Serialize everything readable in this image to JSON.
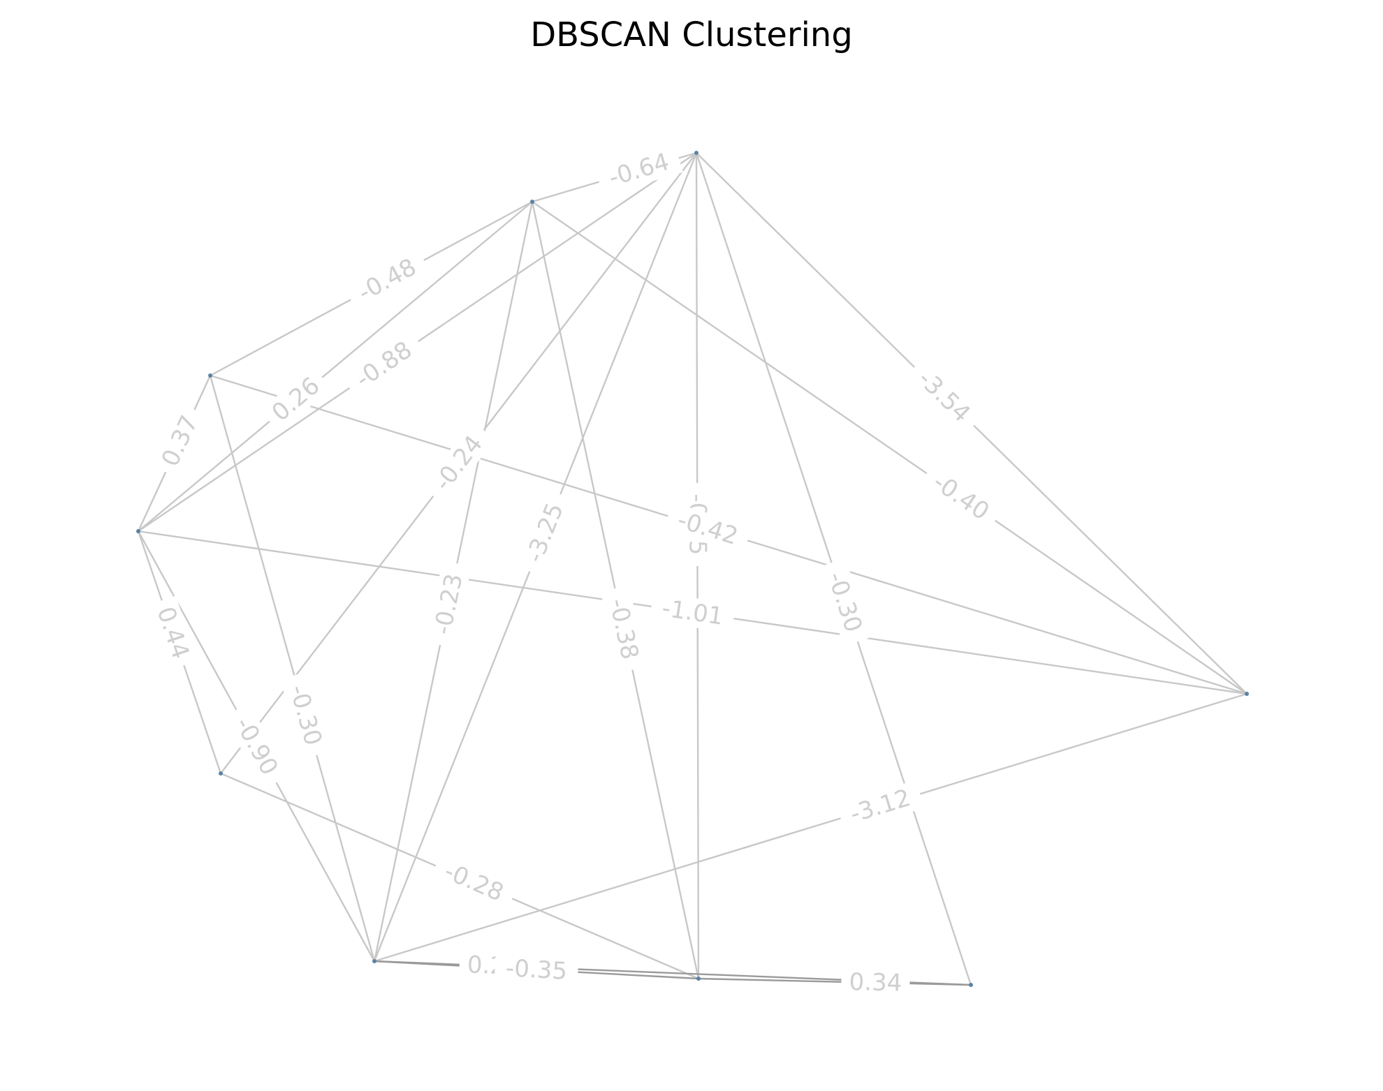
{
  "title": "DBSCAN Clustering",
  "colors": {
    "edge": "#c8c8c8",
    "edge_dark": "#9a9a9a",
    "label_text": "#cfcfcf",
    "label_bg": "#ffffff",
    "node": "#5b82a6",
    "title": "#000000"
  },
  "nodes": [
    {
      "id": "A"
    },
    {
      "id": "B"
    },
    {
      "id": "C"
    },
    {
      "id": "D"
    },
    {
      "id": "E"
    },
    {
      "id": "F"
    },
    {
      "id": "G"
    },
    {
      "id": "H"
    },
    {
      "id": "I"
    }
  ],
  "edges": [
    {
      "source": "A",
      "target": "B",
      "weight": "-0.64"
    },
    {
      "source": "A",
      "target": "D",
      "weight": "-0.88"
    },
    {
      "source": "A",
      "target": "F",
      "weight": "-3.25"
    },
    {
      "source": "A",
      "target": "G",
      "weight": "-0.30"
    },
    {
      "source": "A",
      "target": "H",
      "weight": "-0.45"
    },
    {
      "source": "A",
      "target": "I",
      "weight": "-3.54"
    },
    {
      "source": "B",
      "target": "C",
      "weight": "-0.48"
    },
    {
      "source": "B",
      "target": "F",
      "weight": "-0.23"
    },
    {
      "source": "B",
      "target": "H",
      "weight": "-0.38"
    },
    {
      "source": "B",
      "target": "I",
      "weight": "-0.40"
    },
    {
      "source": "C",
      "target": "D",
      "weight": "0.37"
    },
    {
      "source": "C",
      "target": "F",
      "weight": "-0.30"
    },
    {
      "source": "C",
      "target": "I",
      "weight": "-0.42"
    },
    {
      "source": "D",
      "target": "B",
      "weight": "0.26"
    },
    {
      "source": "D",
      "target": "E",
      "weight": "0.44"
    },
    {
      "source": "D",
      "target": "F",
      "weight": "-0.90"
    },
    {
      "source": "D",
      "target": "I",
      "weight": "-1.01"
    },
    {
      "source": "E",
      "target": "H",
      "weight": "-0.28"
    },
    {
      "source": "F",
      "target": "I",
      "weight": "-3.12"
    },
    {
      "source": "F",
      "target": "G",
      "weight": "0.24"
    },
    {
      "source": "G",
      "target": "H",
      "weight": "0.34"
    },
    {
      "source": "E",
      "target": "A",
      "weight": "-0.24"
    },
    {
      "source": "F",
      "target": "H",
      "weight": "-0.35"
    }
  ]
}
